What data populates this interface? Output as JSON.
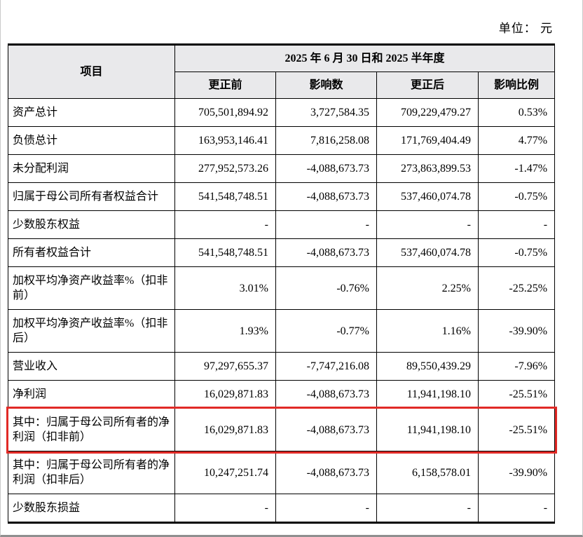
{
  "page": {
    "unit_label": "单位： 元"
  },
  "table": {
    "header": {
      "item_col": "项目",
      "period_span": "2025 年 6 月 30 日和 2025 半年度",
      "sub_columns": [
        "更正前",
        "影响数",
        "更正后",
        "影响比例"
      ]
    },
    "highlight_color": "#e12a26",
    "rows": [
      {
        "item": "资产总计",
        "values": [
          "705,501,894.92",
          "3,727,584.35",
          "709,229,479.27",
          "0.53%"
        ],
        "highlight": false
      },
      {
        "item": "负债总计",
        "values": [
          "163,953,146.41",
          "7,816,258.08",
          "171,769,404.49",
          "4.77%"
        ],
        "highlight": false
      },
      {
        "item": "未分配利润",
        "values": [
          "277,952,573.26",
          "-4,088,673.73",
          "273,863,899.53",
          "-1.47%"
        ],
        "highlight": false
      },
      {
        "item": "归属于母公司所有者权益合计",
        "values": [
          "541,548,748.51",
          "-4,088,673.73",
          "537,460,074.78",
          "-0.75%"
        ],
        "highlight": false
      },
      {
        "item": "少数股东权益",
        "values": [
          "-",
          "-",
          "-",
          "-"
        ],
        "highlight": false
      },
      {
        "item": "所有者权益合计",
        "values": [
          "541,548,748.51",
          "-4,088,673.73",
          "537,460,074.78",
          "-0.75%"
        ],
        "highlight": false
      },
      {
        "item": "加权平均净资产收益率%（扣非前）",
        "values": [
          "3.01%",
          "-0.76%",
          "2.25%",
          "-25.25%"
        ],
        "highlight": false
      },
      {
        "item": "加权平均净资产收益率%（扣非后）",
        "values": [
          "1.93%",
          "-0.77%",
          "1.16%",
          "-39.90%"
        ],
        "highlight": false
      },
      {
        "item": "营业收入",
        "values": [
          "97,297,655.37",
          "-7,747,216.08",
          "89,550,439.29",
          "-7.96%"
        ],
        "highlight": false
      },
      {
        "item": "净利润",
        "values": [
          "16,029,871.83",
          "-4,088,673.73",
          "11,941,198.10",
          "-25.51%"
        ],
        "highlight": false
      },
      {
        "item": "其中：归属于母公司所有者的净利润（扣非前）",
        "values": [
          "16,029,871.83",
          "-4,088,673.73",
          "11,941,198.10",
          "-25.51%"
        ],
        "highlight": true
      },
      {
        "item": "其中：归属于母公司所有者的净利润（扣非后）",
        "values": [
          "10,247,251.74",
          "-4,088,673.73",
          "6,158,578.01",
          "-39.90%"
        ],
        "highlight": false
      },
      {
        "item": "少数股东损益",
        "values": [
          "-",
          "-",
          "-",
          "-"
        ],
        "highlight": false
      }
    ]
  }
}
